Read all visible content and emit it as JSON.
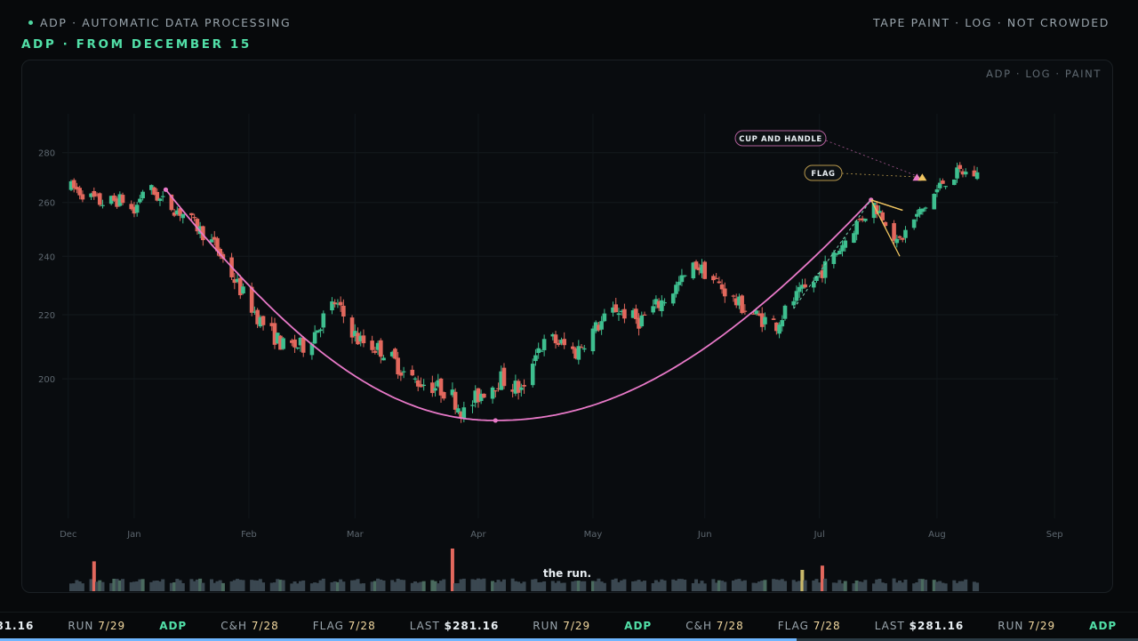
{
  "header": {
    "left_label": "ADP · AUTOMATIC DATA PROCESSING",
    "right_label": "TAPE PAINT · LOG · NOT CROWDED",
    "page_title": "ADP · FROM DECEMBER 15",
    "panel_tag": "ADP · LOG · PAINT",
    "caption": "the run."
  },
  "colors": {
    "up": "#3ebf8f",
    "down": "#e2685d",
    "cup": "#e879c8",
    "flag": "#f0c560",
    "accent": "#52e0a8"
  },
  "chart_data": {
    "type": "candlestick",
    "title": "",
    "y_scale": "log",
    "ylim": [
      186,
      281
    ],
    "y_ticks": [
      "200",
      "220",
      "240",
      "260",
      "280"
    ],
    "x_ticks": [
      "Dec",
      "Jan",
      "Feb",
      "Mar",
      "Apr",
      "May",
      "Jun",
      "Jul",
      "Aug",
      "Sep"
    ],
    "annotations": [
      {
        "label": "CUP AND HANDLE",
        "kind": "cup"
      },
      {
        "label": "FLAG",
        "kind": "flag"
      }
    ],
    "price_path": [
      [
        0,
        266
      ],
      [
        10,
        260
      ],
      [
        18,
        261
      ],
      [
        22,
        256
      ],
      [
        25,
        265
      ],
      [
        27,
        266
      ],
      [
        31,
        261
      ],
      [
        40,
        255
      ],
      [
        50,
        244
      ],
      [
        58,
        230
      ],
      [
        66,
        218
      ],
      [
        74,
        210
      ],
      [
        82,
        210
      ],
      [
        88,
        219
      ],
      [
        92,
        224
      ],
      [
        100,
        212
      ],
      [
        110,
        208
      ],
      [
        118,
        200
      ],
      [
        126,
        198
      ],
      [
        132,
        196
      ],
      [
        137,
        190
      ],
      [
        143,
        196
      ],
      [
        150,
        200
      ],
      [
        158,
        196
      ],
      [
        162,
        209
      ],
      [
        168,
        212
      ],
      [
        176,
        208
      ],
      [
        180,
        213
      ],
      [
        190,
        222
      ],
      [
        198,
        218
      ],
      [
        208,
        226
      ],
      [
        218,
        237
      ],
      [
        226,
        230
      ],
      [
        232,
        224
      ],
      [
        240,
        219
      ],
      [
        246,
        217
      ],
      [
        252,
        225
      ],
      [
        258,
        230
      ],
      [
        266,
        240
      ],
      [
        274,
        252
      ],
      [
        280,
        259
      ],
      [
        286,
        251
      ],
      [
        288,
        244
      ],
      [
        293,
        252
      ],
      [
        299,
        260
      ],
      [
        304,
        268
      ],
      [
        310,
        272
      ],
      [
        316,
        271
      ]
    ],
    "volume": {
      "base": 0.18,
      "spikes": [
        {
          "idx": 8,
          "v": 0.7,
          "tone": "down"
        },
        {
          "idx": 82,
          "v": 0.6,
          "tone": "flag"
        },
        {
          "idx": 133,
          "v": 1.0,
          "tone": "down"
        },
        {
          "idx": 255,
          "v": 0.5,
          "tone": "flag"
        },
        {
          "idx": 262,
          "v": 0.6,
          "tone": "down"
        }
      ]
    }
  },
  "ticker": [
    {
      "label": "",
      "value": "281.16",
      "kind": "value"
    },
    {
      "label": "RUN",
      "value": "7/29",
      "kind": "pair"
    },
    {
      "label": "ADP",
      "value": "",
      "kind": "sym"
    },
    {
      "label": "C&H",
      "value": "7/28",
      "kind": "pair"
    },
    {
      "label": "FLAG",
      "value": "7/28",
      "kind": "pair"
    },
    {
      "label": "LAST",
      "value": "$281.16",
      "kind": "last"
    },
    {
      "label": "RUN",
      "value": "7/29",
      "kind": "pair"
    },
    {
      "label": "ADP",
      "value": "",
      "kind": "sym"
    },
    {
      "label": "C&H",
      "value": "7/28",
      "kind": "pair"
    },
    {
      "label": "FLAG",
      "value": "7/28",
      "kind": "pair"
    },
    {
      "label": "LAST",
      "value": "$281.16",
      "kind": "last"
    },
    {
      "label": "RUN",
      "value": "7/29",
      "kind": "pair"
    },
    {
      "label": "ADP",
      "value": "",
      "kind": "sym"
    },
    {
      "label": "C&H",
      "value": "7/28",
      "kind": "pair"
    },
    {
      "label": "FLAG",
      "value": "7/28",
      "kind": "pair"
    }
  ],
  "progress": 0.7
}
